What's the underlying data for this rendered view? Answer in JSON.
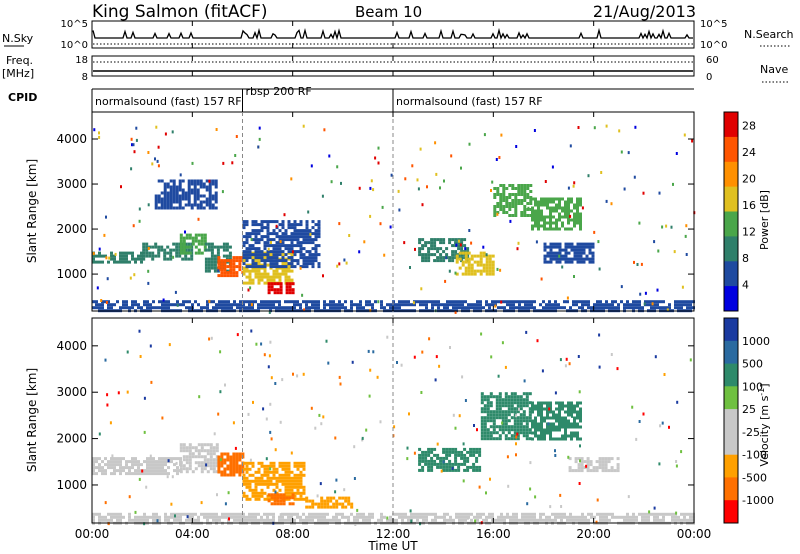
{
  "header": {
    "station": "King Salmon (fitACF)",
    "beam": "Beam 10",
    "date": "21/Aug/2013"
  },
  "summary_panels": {
    "nsky_label": "N.Sky",
    "nsearch_label": "N.Search",
    "noise_ticks": [
      "10^5",
      "10^0"
    ],
    "freq_label_line1": "Freq.",
    "freq_label_line2": "[MHz]",
    "freq_ticks": [
      "18",
      "8"
    ],
    "nave_label": "Nave",
    "nave_ticks": [
      "60",
      "0"
    ],
    "cpid_label": "CPID"
  },
  "cpid_segments": [
    {
      "label": "normalsound (fast) 157 RF",
      "start_h": 0,
      "end_h": 6
    },
    {
      "label": "rbsp 200 RF",
      "start_h": 6,
      "end_h": 12
    },
    {
      "label": "normalsound (fast) 157 RF",
      "start_h": 12,
      "end_h": 24
    }
  ],
  "colors": {
    "power_scale": [
      "#0000e0",
      "#1f4aa0",
      "#2f7f6a",
      "#4aa64a",
      "#e0c020",
      "#ff9000",
      "#ff5500",
      "#e00000"
    ],
    "velocity_scale": [
      "#1a3aa0",
      "#2a6aa0",
      "#2e8a6a",
      "#6fc040",
      "#c8c8c8",
      "#c8c8c8",
      "#ffa000",
      "#ff7000",
      "#ff0000"
    ]
  },
  "chart_data": [
    {
      "type": "heatmap",
      "ylabel": "Slant Range [km]",
      "ylim": [
        180,
        4600
      ],
      "yticks": [
        "1000",
        "2000",
        "3000",
        "4000"
      ],
      "xlim": [
        0,
        24
      ],
      "colorbar": {
        "label": "Power [dB]",
        "ticks": [
          "4",
          "8",
          "12",
          "16",
          "20",
          "24",
          "28"
        ],
        "range": [
          0,
          30
        ]
      },
      "regions": [
        {
          "t": [
            0.0,
            2.0
          ],
          "r": [
            1250,
            1500
          ],
          "value": 9
        },
        {
          "t": [
            2.0,
            4.0
          ],
          "r": [
            1350,
            1700
          ],
          "value": 11
        },
        {
          "t": [
            3.5,
            4.5
          ],
          "r": [
            1500,
            1900
          ],
          "value": 14
        },
        {
          "t": [
            4.5,
            5.5
          ],
          "r": [
            1100,
            1700
          ],
          "value": 10
        },
        {
          "t": [
            5.0,
            6.0
          ],
          "r": [
            1000,
            1400
          ],
          "value": 25
        },
        {
          "t": [
            6.0,
            8.0
          ],
          "r": [
            800,
            1500
          ],
          "value": 18
        },
        {
          "t": [
            7.0,
            8.0
          ],
          "r": [
            620,
            820
          ],
          "value": 29
        },
        {
          "t": [
            6.0,
            9.0
          ],
          "r": [
            1200,
            2200
          ],
          "value": 6
        },
        {
          "t": [
            2.5,
            5.0
          ],
          "r": [
            2500,
            3100
          ],
          "value": 6
        },
        {
          "t": [
            13.0,
            15.0
          ],
          "r": [
            1300,
            1800
          ],
          "value": 10
        },
        {
          "t": [
            14.5,
            16.0
          ],
          "r": [
            1000,
            1500
          ],
          "value": 18
        },
        {
          "t": [
            16.0,
            17.5
          ],
          "r": [
            2300,
            3000
          ],
          "value": 14
        },
        {
          "t": [
            17.5,
            19.5
          ],
          "r": [
            2000,
            2700
          ],
          "value": 12
        },
        {
          "t": [
            18.0,
            20.0
          ],
          "r": [
            1300,
            1700
          ],
          "value": 6
        },
        {
          "t": [
            0.0,
            24.0
          ],
          "r": [
            200,
            420
          ],
          "value": 5
        }
      ]
    },
    {
      "type": "heatmap",
      "ylabel": "Slant Range [km]",
      "ylim": [
        180,
        4600
      ],
      "yticks": [
        "1000",
        "2000",
        "3000",
        "4000"
      ],
      "xlim": [
        0,
        24
      ],
      "colorbar": {
        "label": "Velocity [m s^-1]",
        "ticks": [
          "1000",
          "500",
          "100",
          "25",
          "-25",
          "-100",
          "-500",
          "-1000"
        ]
      },
      "regions": [
        {
          "t": [
            0.0,
            3.5
          ],
          "r": [
            1250,
            1600
          ],
          "value": 0
        },
        {
          "t": [
            3.5,
            5.0
          ],
          "r": [
            1300,
            1900
          ],
          "value": 10
        },
        {
          "t": [
            5.0,
            6.0
          ],
          "r": [
            1200,
            1700
          ],
          "value": -1000
        },
        {
          "t": [
            6.0,
            8.5
          ],
          "r": [
            700,
            1500
          ],
          "value": -300
        },
        {
          "t": [
            7.0,
            8.0
          ],
          "r": [
            620,
            820
          ],
          "value": -1000
        },
        {
          "t": [
            8.5,
            10.5
          ],
          "r": [
            550,
            750
          ],
          "value": -150
        },
        {
          "t": [
            13.0,
            15.5
          ],
          "r": [
            1300,
            1800
          ],
          "value": 300
        },
        {
          "t": [
            15.5,
            17.5
          ],
          "r": [
            2000,
            3000
          ],
          "value": 300
        },
        {
          "t": [
            17.5,
            19.5
          ],
          "r": [
            2000,
            2800
          ],
          "value": 150
        },
        {
          "t": [
            19.0,
            21.0
          ],
          "r": [
            1300,
            1600
          ],
          "value": 0
        },
        {
          "t": [
            0.0,
            24.0
          ],
          "r": [
            200,
            400
          ],
          "value": -50
        }
      ]
    }
  ],
  "xaxis": {
    "ticks": [
      "00:00",
      "04:00",
      "08:00",
      "12:00",
      "16:00",
      "20:00",
      "00:00"
    ],
    "label": "Time UT"
  }
}
